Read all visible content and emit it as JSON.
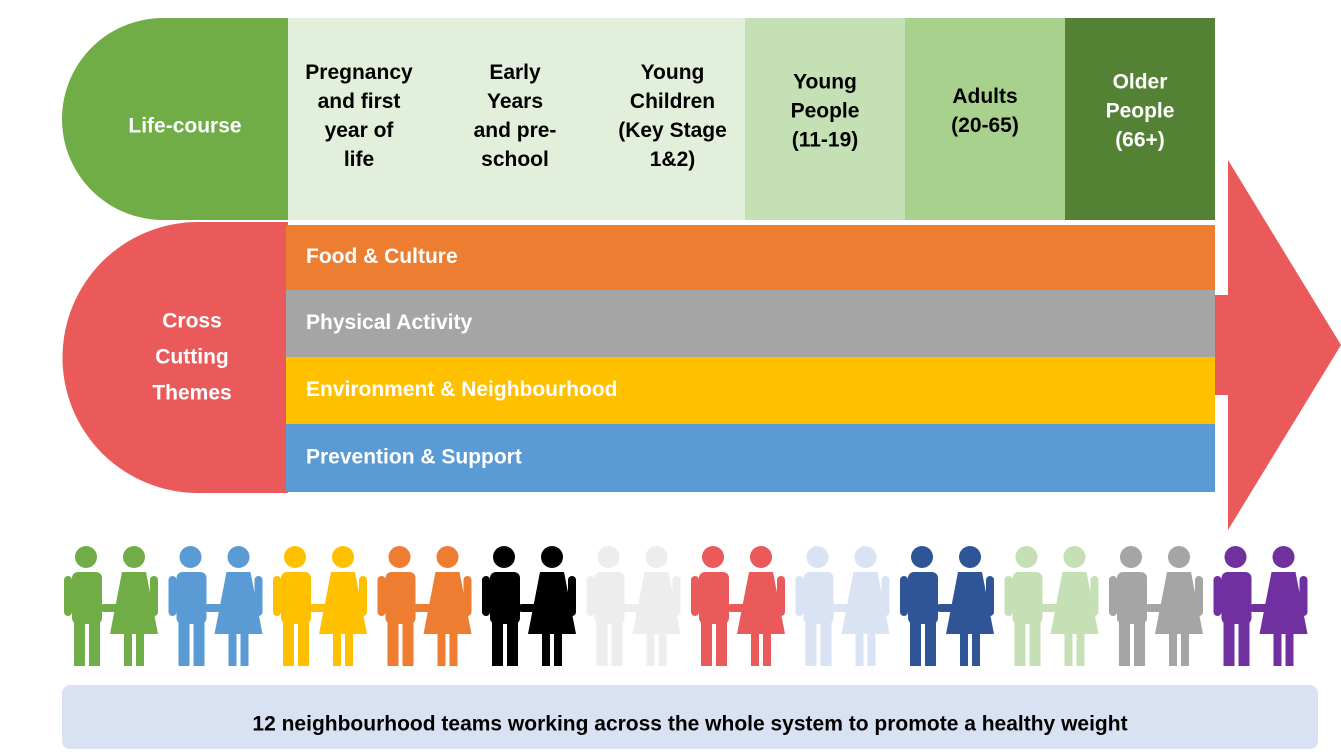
{
  "lifecourse": {
    "label": "Life-course",
    "stages": [
      {
        "lines": [
          "Pregnancy",
          "and first",
          "year of",
          "life"
        ]
      },
      {
        "lines": [
          "Early",
          "Years",
          "and pre-",
          "school"
        ]
      },
      {
        "lines": [
          "Young",
          "Children",
          "(Key Stage",
          "1&2)"
        ]
      },
      {
        "lines": [
          "Young",
          "People",
          "(11-19)"
        ]
      },
      {
        "lines": [
          "Adults",
          "(20-65)"
        ]
      },
      {
        "lines": [
          "Older",
          "People",
          "(66+)"
        ]
      }
    ]
  },
  "themes": {
    "label": [
      "Cross",
      "Cutting",
      "Themes"
    ],
    "items": [
      "Food & Culture",
      "Physical Activity",
      "Environment & Neighbourhood",
      "Prevention & Support"
    ]
  },
  "people_colors": [
    "#70ad47",
    "#5b9bd5",
    "#ffc000",
    "#ed7d31",
    "#000000",
    "#ededed",
    "#ea5a5a",
    "#dae3f3",
    "#2f5597",
    "#c5e0b4",
    "#a5a5a5",
    "#7030a0"
  ],
  "footer": "12 neighbourhood teams working across the whole system to promote a healthy weight"
}
